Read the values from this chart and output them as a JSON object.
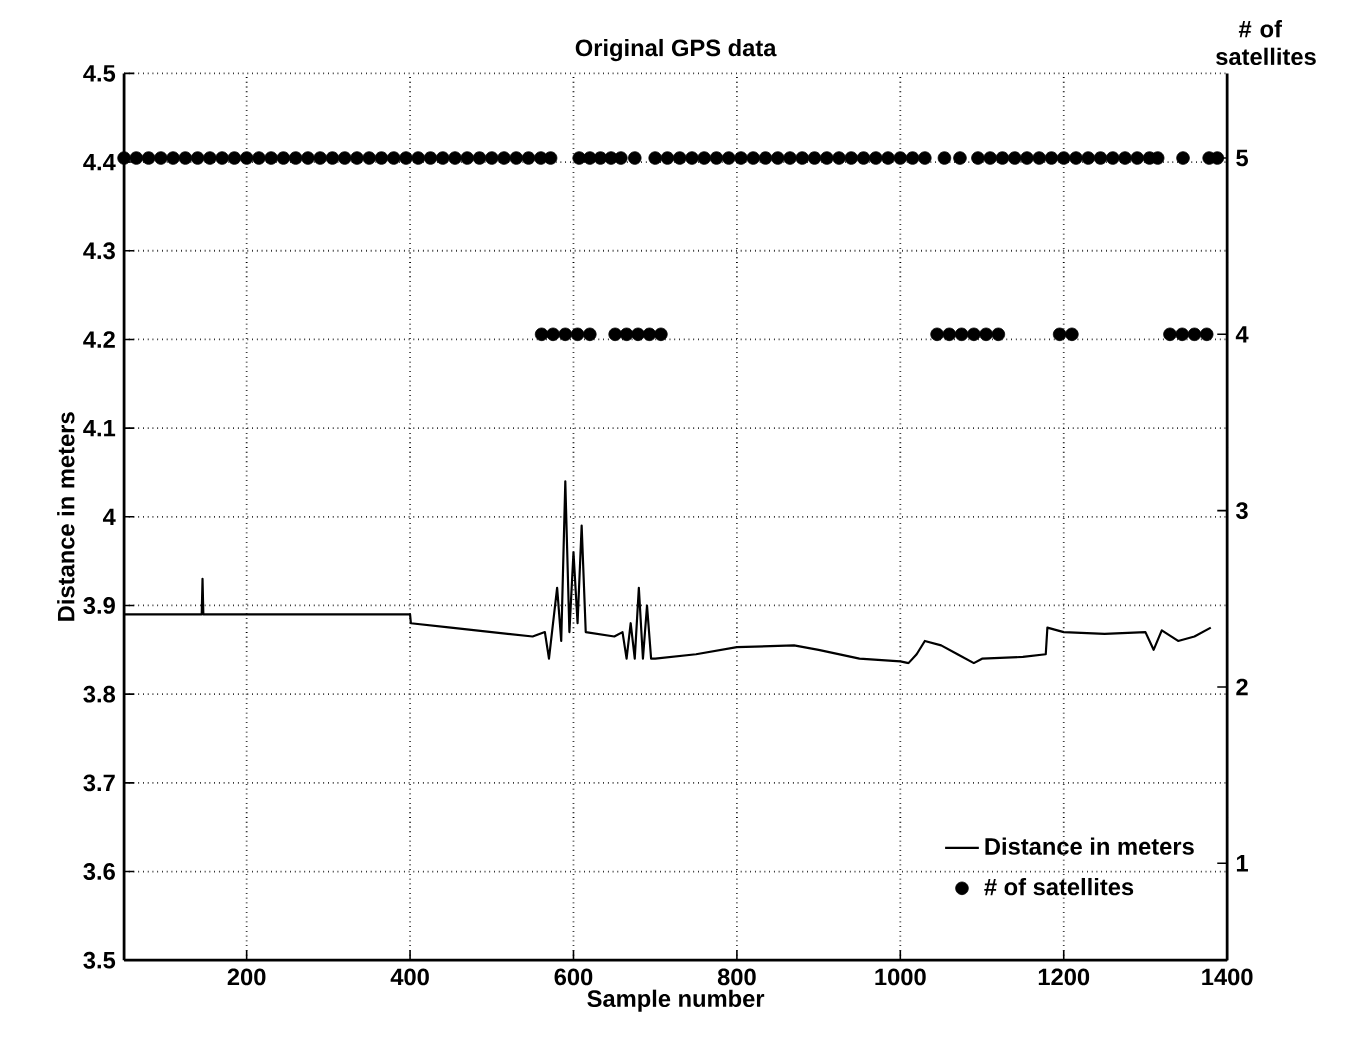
{
  "chart_data": {
    "type": "line",
    "title": "Original GPS data",
    "xlabel": "Sample number",
    "ylabel": "Distance in meters",
    "y2label": "# of satellites",
    "xlim": [
      50,
      1400
    ],
    "xticks": [
      200,
      400,
      600,
      800,
      1000,
      1200,
      1400
    ],
    "ylim": [
      3.5,
      4.5
    ],
    "yticks": [
      3.5,
      3.6,
      3.7,
      3.8,
      3.9,
      4,
      4.1,
      4.2,
      4.3,
      4.4,
      4.5
    ],
    "y2lim": [
      0.45,
      5.48
    ],
    "y2ticks": [
      1,
      2,
      3,
      4,
      5
    ],
    "grid": true,
    "legend": "bottom right",
    "series": [
      {
        "name": "Distance in meters",
        "color": "#000000",
        "x": [
          50,
          145,
          146,
          147,
          400,
          401,
          450,
          500,
          550,
          565,
          570,
          575,
          580,
          585,
          590,
          595,
          600,
          605,
          610,
          615,
          650,
          660,
          665,
          670,
          675,
          680,
          685,
          690,
          695,
          700,
          750,
          800,
          870,
          900,
          950,
          1000,
          1010,
          1020,
          1030,
          1050,
          1070,
          1090,
          1100,
          1150,
          1178,
          1180,
          1200,
          1250,
          1300,
          1310,
          1320,
          1340,
          1360,
          1380
        ],
        "values": [
          3.89,
          3.89,
          3.93,
          3.89,
          3.89,
          3.88,
          3.875,
          3.87,
          3.865,
          3.87,
          3.84,
          3.88,
          3.92,
          3.86,
          4.04,
          3.87,
          3.96,
          3.88,
          3.99,
          3.87,
          3.865,
          3.87,
          3.84,
          3.88,
          3.84,
          3.92,
          3.84,
          3.9,
          3.84,
          3.84,
          3.845,
          3.853,
          3.855,
          3.85,
          3.84,
          3.837,
          3.835,
          3.845,
          3.86,
          3.855,
          3.845,
          3.835,
          3.84,
          3.842,
          3.845,
          3.875,
          3.87,
          3.868,
          3.87,
          3.85,
          3.872,
          3.86,
          3.865,
          3.875
        ]
      },
      {
        "name": "# of satellites",
        "type": "scatter",
        "axis": "y2",
        "color": "#000000",
        "marker": "circle",
        "x": [
          50,
          65,
          80,
          95,
          110,
          125,
          140,
          155,
          170,
          185,
          200,
          215,
          230,
          245,
          260,
          275,
          290,
          305,
          320,
          335,
          350,
          365,
          380,
          395,
          410,
          425,
          440,
          455,
          470,
          485,
          500,
          515,
          530,
          545,
          560,
          561,
          572,
          575,
          590,
          605,
          607,
          620,
          620,
          633,
          646,
          651,
          658,
          665,
          675,
          679,
          693,
          700,
          707,
          715,
          730,
          745,
          760,
          775,
          790,
          805,
          820,
          835,
          850,
          865,
          880,
          895,
          910,
          925,
          940,
          955,
          970,
          985,
          1000,
          1015,
          1030,
          1045,
          1054,
          1060,
          1073,
          1075,
          1090,
          1095,
          1105,
          1110,
          1120,
          1125,
          1140,
          1155,
          1170,
          1185,
          1195,
          1200,
          1210,
          1215,
          1230,
          1245,
          1260,
          1275,
          1290,
          1305,
          1315,
          1330,
          1345,
          1346,
          1360,
          1375,
          1378,
          1388
        ],
        "values": [
          5,
          5,
          5,
          5,
          5,
          5,
          5,
          5,
          5,
          5,
          5,
          5,
          5,
          5,
          5,
          5,
          5,
          5,
          5,
          5,
          5,
          5,
          5,
          5,
          5,
          5,
          5,
          5,
          5,
          5,
          5,
          5,
          5,
          5,
          5,
          4,
          5,
          4,
          4,
          4,
          5,
          5,
          4,
          5,
          5,
          4,
          5,
          4,
          5,
          4,
          4,
          5,
          4,
          5,
          5,
          5,
          5,
          5,
          5,
          5,
          5,
          5,
          5,
          5,
          5,
          5,
          5,
          5,
          5,
          5,
          5,
          5,
          5,
          5,
          5,
          4,
          5,
          4,
          5,
          4,
          4,
          5,
          4,
          5,
          4,
          5,
          5,
          5,
          5,
          5,
          4,
          5,
          4,
          5,
          5,
          5,
          5,
          5,
          5,
          5,
          5,
          4,
          4,
          5,
          4,
          4,
          5,
          5
        ]
      }
    ]
  }
}
